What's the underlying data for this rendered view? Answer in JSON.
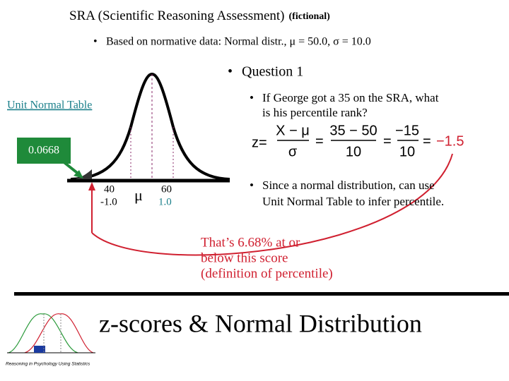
{
  "slide": {
    "title": "SRA (Scientific Reasoning Assessment)",
    "title_note": "(fictional)",
    "bullet": "Based on normative data: Normal distr., μ = 50.0, σ = 10.0",
    "question_heading": "Question 1",
    "question_lines": [
      "If George got a 35 on the SRA, what",
      "is his percentile rank?"
    ],
    "table_link": "Unit Normal Table",
    "table_value": "0.0668",
    "axis_labels": {
      "low_score": "40",
      "low_z": "-1.0",
      "mean": "μ",
      "high_score": "60",
      "high_z": "1.0"
    },
    "equation": {
      "lhs": "z=",
      "num1": "X − μ",
      "den1": "σ",
      "eq1": "=",
      "num2": "35 − 50",
      "den2": "10",
      "eq2": "=",
      "num3": "−15",
      "den3": "10",
      "eq3": "=",
      "result": "−1.5"
    },
    "note_lines": [
      "Since a normal distribution, can use",
      "Unit Normal Table to infer percentile."
    ],
    "conclusion_lines": [
      "That’s 6.68% at or",
      "below this score",
      "(definition of percentile)"
    ],
    "footer_title": "z-scores & Normal Distribution",
    "footer_caption": "Reasoning in Psychology Using Statistics"
  }
}
